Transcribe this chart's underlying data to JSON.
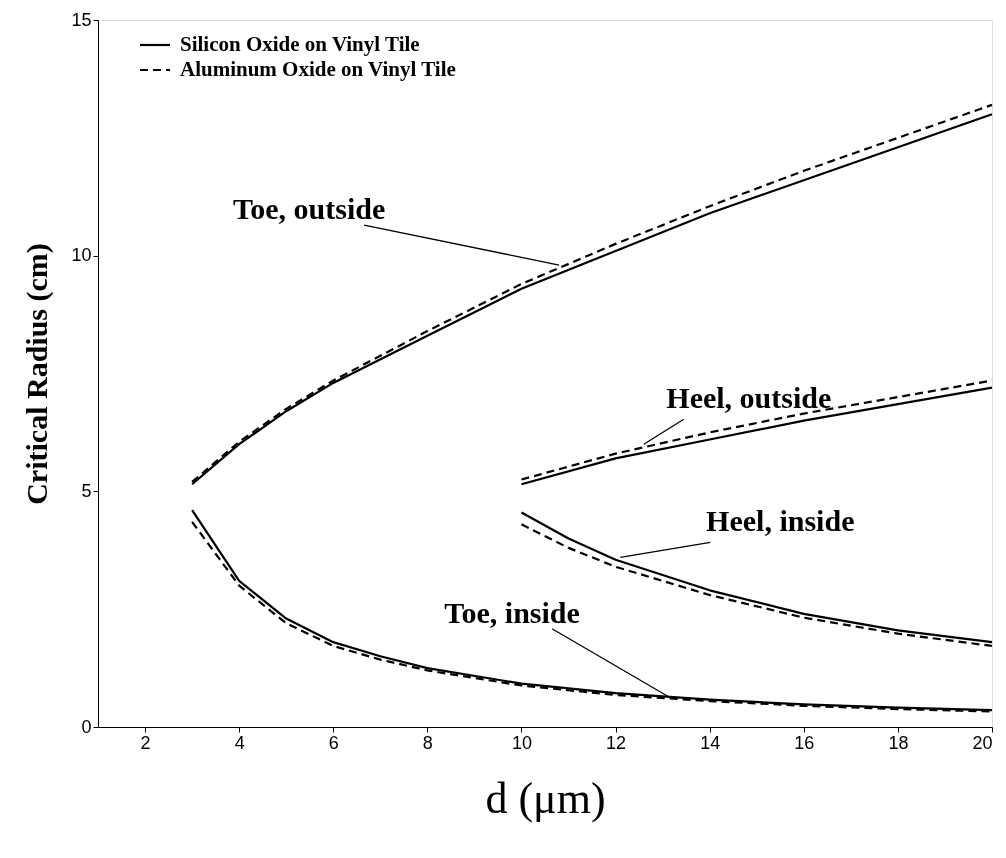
{
  "chart_data": {
    "type": "line",
    "xlabel": "d (μm)",
    "ylabel": "Critical Radius (cm)",
    "xlim": [
      1,
      20
    ],
    "xticks": [
      2,
      4,
      6,
      8,
      10,
      12,
      14,
      16,
      18,
      20
    ],
    "ylim": [
      0,
      15
    ],
    "yticks": [
      0,
      5,
      10,
      15
    ],
    "grid": false,
    "legend": "top left",
    "marker": "none",
    "series": [
      {
        "name": "Silicon Oxide on Vinyl Tile",
        "color": "#000000",
        "line_style": "solid",
        "x": [
          3,
          4,
          5,
          6,
          8,
          10,
          12,
          14,
          16,
          18,
          20
        ],
        "values": [
          5.15,
          6.0,
          6.7,
          7.3,
          8.3,
          9.3,
          10.1,
          10.9,
          11.6,
          12.3,
          13.0
        ]
      },
      {
        "name": "Aluminum Oxide on Vinyl Tile",
        "color": "#000000",
        "line_style": "dashed",
        "x": [
          3,
          4,
          5,
          6,
          8,
          10,
          12,
          14,
          16,
          18,
          20
        ],
        "values": [
          5.2,
          6.05,
          6.75,
          7.35,
          8.4,
          9.4,
          10.25,
          11.05,
          11.8,
          12.5,
          13.2
        ]
      },
      {
        "color": "#000000",
        "line_style": "solid",
        "x": [
          3,
          4,
          5,
          6,
          7,
          8,
          10,
          12,
          14,
          16,
          18,
          20
        ],
        "values": [
          4.6,
          3.1,
          2.3,
          1.8,
          1.5,
          1.25,
          0.92,
          0.72,
          0.58,
          0.48,
          0.41,
          0.36
        ]
      },
      {
        "color": "#000000",
        "line_style": "dashed",
        "x": [
          3,
          4,
          5,
          6,
          7,
          8,
          10,
          12,
          14,
          16,
          18,
          20
        ],
        "values": [
          4.35,
          3.0,
          2.2,
          1.72,
          1.43,
          1.2,
          0.88,
          0.68,
          0.55,
          0.45,
          0.38,
          0.33
        ]
      },
      {
        "color": "#000000",
        "line_style": "solid",
        "x": [
          10,
          12,
          14,
          16,
          18,
          20
        ],
        "values": [
          5.15,
          5.7,
          6.1,
          6.5,
          6.85,
          7.2
        ]
      },
      {
        "color": "#000000",
        "line_style": "dashed",
        "x": [
          10,
          12,
          14,
          16,
          18,
          20
        ],
        "values": [
          5.25,
          5.8,
          6.25,
          6.65,
          7.0,
          7.35
        ]
      },
      {
        "color": "#000000",
        "line_style": "solid",
        "x": [
          10,
          11,
          12,
          14,
          16,
          18,
          20
        ],
        "values": [
          4.55,
          4.0,
          3.55,
          2.9,
          2.4,
          2.05,
          1.8
        ]
      },
      {
        "color": "#000000",
        "line_style": "dashed",
        "x": [
          10,
          11,
          12,
          14,
          16,
          18,
          20
        ],
        "values": [
          4.3,
          3.8,
          3.4,
          2.8,
          2.32,
          1.98,
          1.72
        ]
      }
    ],
    "annotations": [
      {
        "text": "Toe, outside",
        "x": 10.8,
        "y": 9.8
      },
      {
        "text": "Heel, outside",
        "x": 12.6,
        "y": 6.0
      },
      {
        "text": "Heel, inside",
        "x": 12.1,
        "y": 3.6
      },
      {
        "text": "Toe, inside",
        "x": 13.2,
        "y": 0.6
      }
    ]
  }
}
